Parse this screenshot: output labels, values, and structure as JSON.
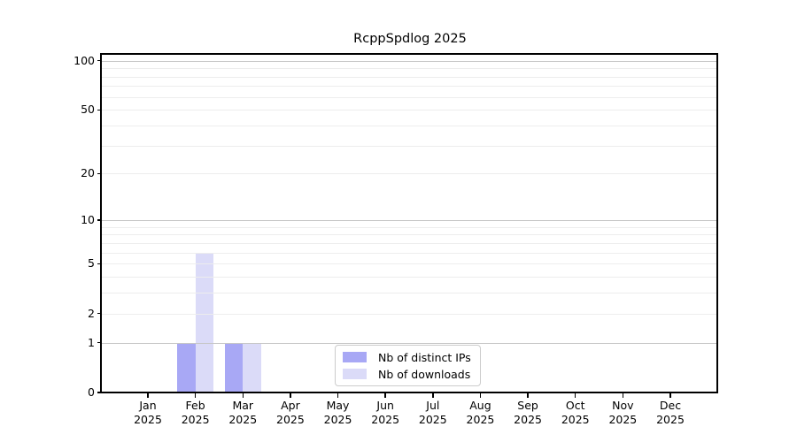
{
  "title": "RcppSpdlog 2025",
  "chart_data": {
    "type": "bar",
    "title": "RcppSpdlog 2025",
    "categories": [
      "Jan",
      "Feb",
      "Mar",
      "Apr",
      "May",
      "Jun",
      "Jul",
      "Aug",
      "Sep",
      "Oct",
      "Nov",
      "Dec"
    ],
    "year": "2025",
    "series": [
      {
        "name": "Nb of distinct IPs",
        "color": "#a8a8f5",
        "values": [
          0,
          1,
          1,
          0,
          0,
          0,
          0,
          0,
          0,
          0,
          0,
          0
        ]
      },
      {
        "name": "Nb of downloads",
        "color": "#dbdbf8",
        "values": [
          0,
          6,
          1,
          0,
          0,
          0,
          0,
          0,
          0,
          0,
          0,
          0
        ]
      }
    ],
    "xlabel": "",
    "ylabel": "",
    "yscale": "log1p",
    "ylim": [
      0,
      111.5
    ],
    "yticks": [
      0,
      1,
      2,
      5,
      10,
      20,
      50,
      100
    ],
    "grid_major": [
      1,
      10,
      100
    ],
    "grid_minor": [
      2,
      3,
      4,
      5,
      6,
      7,
      8,
      9,
      20,
      30,
      40,
      50,
      60,
      70,
      80,
      90
    ],
    "grid_on": true,
    "legend_position": "lower-center-inside",
    "colors": {
      "spine": "#000000",
      "grid_major": "#c6c6c6",
      "grid_minor": "#ededed",
      "legend_border": "#cccccc",
      "background": "#ffffff",
      "text": "#000000"
    }
  }
}
